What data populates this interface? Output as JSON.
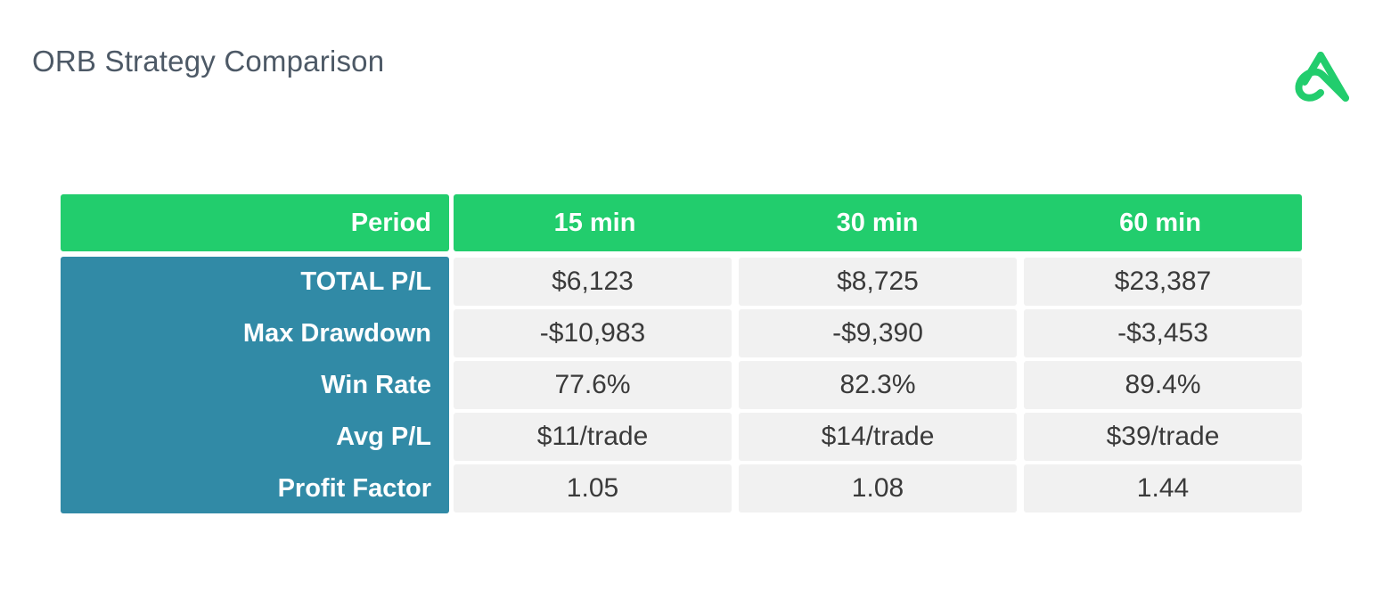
{
  "title": "ORB Strategy Comparison",
  "logo": {
    "icon": "brand-logo-icon",
    "color": "#22cd6d"
  },
  "colors": {
    "header_bg": "#22cd6d",
    "row_label_bg": "#318aa6",
    "cell_bg": "#f1f1f1",
    "title_color": "#4d5966"
  },
  "chart_data": {
    "type": "table",
    "title": "ORB Strategy Comparison",
    "header_label": "Period",
    "columns": [
      "15 min",
      "30 min",
      "60 min"
    ],
    "rows": [
      {
        "label": "TOTAL P/L",
        "values": [
          "$6,123",
          "$8,725",
          "$23,387"
        ]
      },
      {
        "label": "Max Drawdown",
        "values": [
          "-$10,983",
          "-$9,390",
          "-$3,453"
        ]
      },
      {
        "label": "Win Rate",
        "values": [
          "77.6%",
          "82.3%",
          "89.4%"
        ]
      },
      {
        "label": "Avg P/L",
        "values": [
          "$11/trade",
          "$14/trade",
          "$39/trade"
        ]
      },
      {
        "label": "Profit Factor",
        "values": [
          "1.05",
          "1.08",
          "1.44"
        ]
      }
    ]
  }
}
